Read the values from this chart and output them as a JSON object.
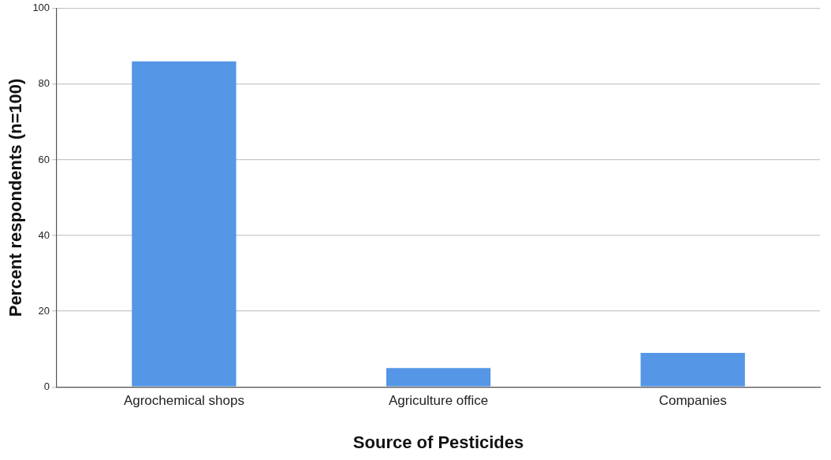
{
  "chart_data": {
    "type": "bar",
    "xlabel": "Source of Pesticides",
    "ylabel": "Percent respondents (n=100)",
    "categories": [
      "Agrochemical shops",
      "Agriculture office",
      "Companies"
    ],
    "values": [
      86,
      5,
      9
    ],
    "color": "#5596e6",
    "ylim": [
      0,
      100
    ],
    "yticks": [
      0,
      20,
      40,
      60,
      80,
      100
    ],
    "grid": "y",
    "legend": false
  }
}
